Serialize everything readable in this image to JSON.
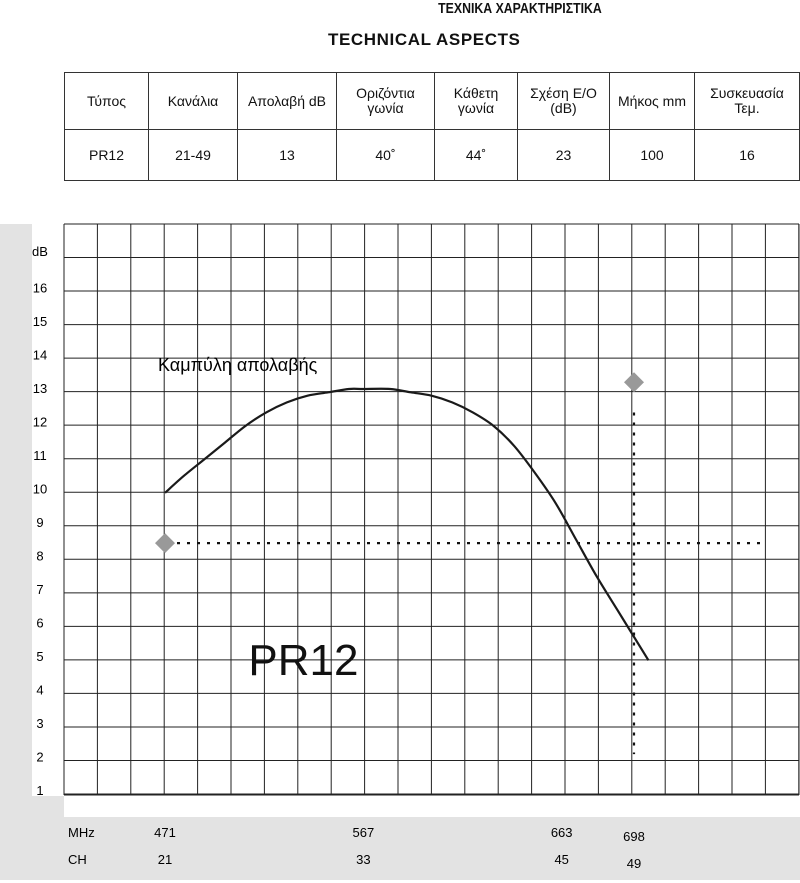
{
  "header": {
    "title_greek": "ΤΕΧΝΙΚΑ ΧΑΡΑΚΤΗΡΙΣΤΙΚΑ",
    "title_english": "TECHNICAL  ASPECTS"
  },
  "specs_table": {
    "headers": [
      "Τύπος",
      "Κανάλια",
      "Απολαβή dB",
      "Οριζόντια γωνία",
      "Κάθετη γωνία",
      "Σχέση Ε/Ο (dB)",
      "Μήκος mm",
      "Συσκευασία Τεμ."
    ],
    "row": [
      "PR12",
      "21-49",
      "13",
      "40˚",
      "44˚",
      "23",
      "100",
      "16"
    ]
  },
  "chart_data": {
    "type": "line",
    "title": "",
    "ylabel": "dB",
    "xlabel": "MHz",
    "ylim": [
      0.5,
      17
    ],
    "xlim": [
      451,
      767
    ],
    "yticks": [
      "1",
      "2",
      "3",
      "4",
      "5",
      "6",
      "7",
      "8",
      "9",
      "10",
      "11",
      "12",
      "13",
      "14",
      "15",
      "16"
    ],
    "x_ticks_mhz": [
      {
        "mhz": 471,
        "label": "471",
        "ch": "21"
      },
      {
        "mhz": 567,
        "label": "567",
        "ch": "33"
      },
      {
        "mhz": 663,
        "label": "663",
        "ch": "45"
      },
      {
        "mhz": 698,
        "label": "698",
        "ch": "49"
      }
    ],
    "axis_row_labels": {
      "mhz": "MHz",
      "ch": "CH"
    },
    "grid": true,
    "series": [
      {
        "name": "Καμπύλη απολαβής",
        "color": "#1a1a1a",
        "x": [
          471,
          480,
          490,
          500,
          510,
          520,
          530,
          540,
          550,
          560,
          567,
          580,
          590,
          600,
          610,
          620,
          630,
          640,
          650,
          660,
          670,
          680,
          690,
          700,
          705
        ],
        "y": [
          9.9,
          10.4,
          10.9,
          11.4,
          11.9,
          12.3,
          12.6,
          12.8,
          12.9,
          13.0,
          13.0,
          13.0,
          12.9,
          12.8,
          12.6,
          12.3,
          11.9,
          11.3,
          10.5,
          9.6,
          8.5,
          7.4,
          6.4,
          5.4,
          4.9
        ]
      }
    ],
    "reference_lines": [
      {
        "type": "horizontal",
        "y": 8.4,
        "x_from": 471,
        "x_to": 761,
        "style": "dotted"
      },
      {
        "type": "vertical",
        "x": 698,
        "y_from": 2.1,
        "y_to": 12.3,
        "style": "dotted"
      }
    ],
    "markers": [
      {
        "x": 471,
        "y": 8.4,
        "shape": "diamond",
        "color": "#999999"
      },
      {
        "x": 698,
        "y": 13.2,
        "shape": "diamond",
        "color": "#999999"
      }
    ],
    "annotations": [
      {
        "text": "PR12",
        "x": 538,
        "y": 5.0
      }
    ],
    "colors": {
      "panel": "#e3e3e3",
      "grid": "#222222",
      "curve": "#1a1a1a",
      "marker": "#999999"
    }
  }
}
